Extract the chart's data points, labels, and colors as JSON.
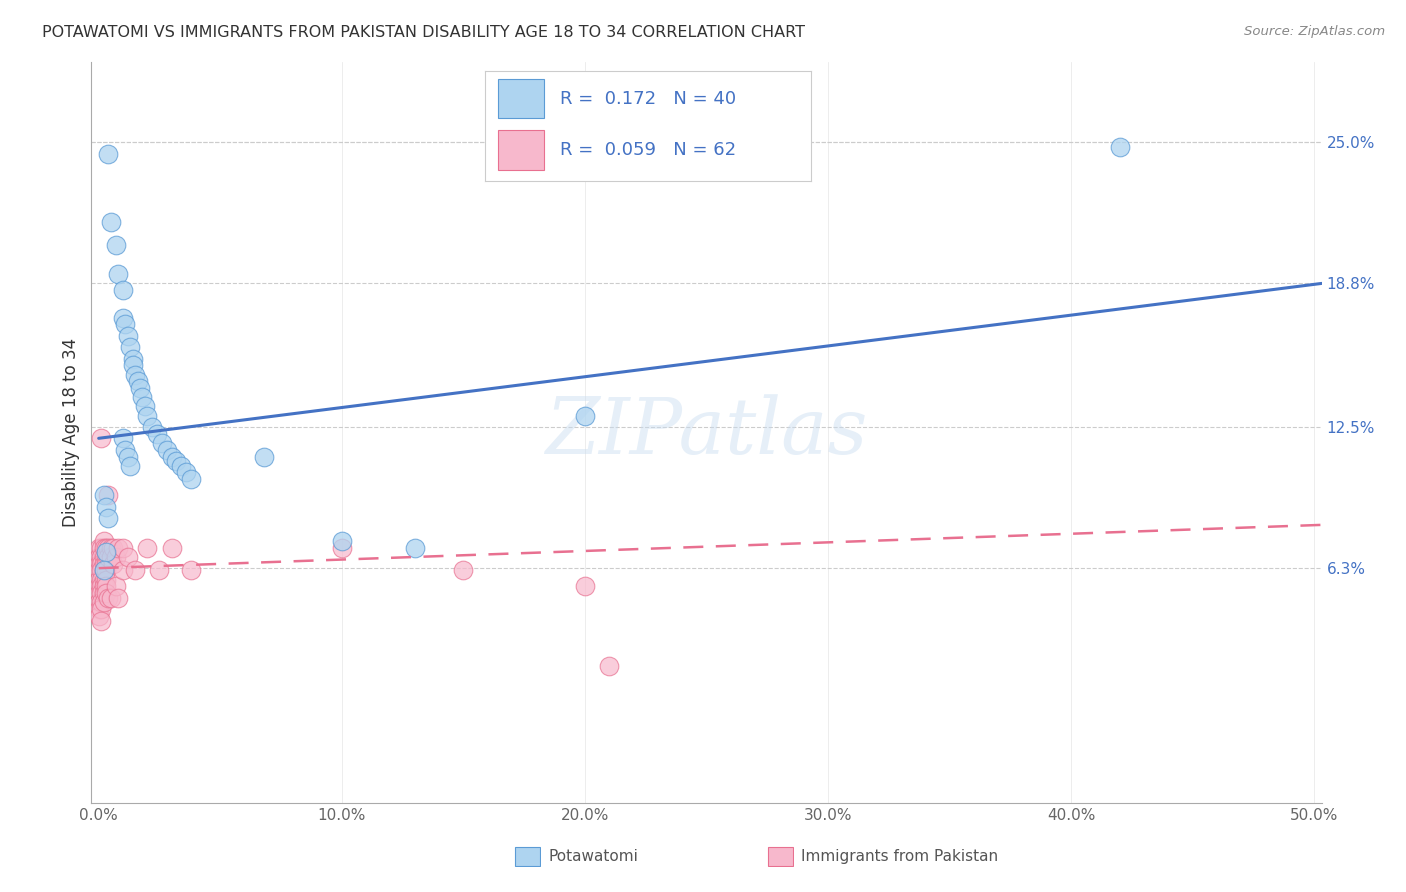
{
  "title": "POTAWATOMI VS IMMIGRANTS FROM PAKISTAN DISABILITY AGE 18 TO 34 CORRELATION CHART",
  "source": "Source: ZipAtlas.com",
  "ylabel": "Disability Age 18 to 34",
  "xlim": [
    -0.003,
    0.503
  ],
  "ylim": [
    -0.04,
    0.285
  ],
  "ytick_values": [
    0.063,
    0.125,
    0.188,
    0.25
  ],
  "ytick_labels": [
    "6.3%",
    "12.5%",
    "18.8%",
    "25.0%"
  ],
  "xtick_values": [
    0.0,
    0.1,
    0.2,
    0.3,
    0.4,
    0.5
  ],
  "xtick_labels": [
    "0.0%",
    "10.0%",
    "20.0%",
    "30.0%",
    "40.0%",
    "50.0%"
  ],
  "blue_R": "0.172",
  "blue_N": "40",
  "pink_R": "0.059",
  "pink_N": "62",
  "blue_face_color": "#AED4F0",
  "blue_edge_color": "#5B9BD5",
  "pink_face_color": "#F7B8CC",
  "pink_edge_color": "#E87090",
  "blue_line_color": "#4472C4",
  "pink_line_color": "#E87090",
  "legend_text_color": "#4472C4",
  "legend_label_blue": "Potawatomi",
  "legend_label_pink": "Immigrants from Pakistan",
  "watermark": "ZIPatlas",
  "blue_x": [
    0.004,
    0.005,
    0.007,
    0.008,
    0.01,
    0.01,
    0.011,
    0.012,
    0.013,
    0.014,
    0.014,
    0.015,
    0.016,
    0.017,
    0.018,
    0.019,
    0.02,
    0.022,
    0.024,
    0.026,
    0.028,
    0.03,
    0.032,
    0.034,
    0.036,
    0.038,
    0.01,
    0.011,
    0.012,
    0.013,
    0.068,
    0.1,
    0.13,
    0.2,
    0.42,
    0.002,
    0.003,
    0.004,
    0.003,
    0.002
  ],
  "blue_y": [
    0.245,
    0.215,
    0.205,
    0.192,
    0.185,
    0.173,
    0.17,
    0.165,
    0.16,
    0.155,
    0.152,
    0.148,
    0.145,
    0.142,
    0.138,
    0.134,
    0.13,
    0.125,
    0.122,
    0.118,
    0.115,
    0.112,
    0.11,
    0.108,
    0.105,
    0.102,
    0.12,
    0.115,
    0.112,
    0.108,
    0.112,
    0.075,
    0.072,
    0.13,
    0.248,
    0.095,
    0.09,
    0.085,
    0.07,
    0.062
  ],
  "pink_x": [
    0.0,
    0.0,
    0.0,
    0.0,
    0.0,
    0.0,
    0.0,
    0.0,
    0.0,
    0.0,
    0.001,
    0.001,
    0.001,
    0.001,
    0.001,
    0.001,
    0.001,
    0.001,
    0.001,
    0.001,
    0.001,
    0.002,
    0.002,
    0.002,
    0.002,
    0.002,
    0.002,
    0.002,
    0.002,
    0.002,
    0.003,
    0.003,
    0.003,
    0.003,
    0.003,
    0.003,
    0.003,
    0.004,
    0.004,
    0.004,
    0.004,
    0.005,
    0.005,
    0.005,
    0.006,
    0.006,
    0.007,
    0.007,
    0.008,
    0.008,
    0.01,
    0.01,
    0.012,
    0.015,
    0.02,
    0.025,
    0.03,
    0.038,
    0.1,
    0.15,
    0.2,
    0.21
  ],
  "pink_y": [
    0.072,
    0.068,
    0.065,
    0.062,
    0.058,
    0.055,
    0.052,
    0.048,
    0.045,
    0.042,
    0.072,
    0.068,
    0.065,
    0.062,
    0.058,
    0.055,
    0.052,
    0.048,
    0.045,
    0.04,
    0.12,
    0.075,
    0.072,
    0.068,
    0.065,
    0.062,
    0.058,
    0.055,
    0.052,
    0.048,
    0.072,
    0.068,
    0.065,
    0.062,
    0.058,
    0.055,
    0.052,
    0.095,
    0.072,
    0.068,
    0.05,
    0.072,
    0.068,
    0.05,
    0.072,
    0.065,
    0.068,
    0.055,
    0.072,
    0.05,
    0.072,
    0.062,
    0.068,
    0.062,
    0.072,
    0.062,
    0.072,
    0.062,
    0.072,
    0.062,
    0.055,
    0.02
  ],
  "blue_line_x": [
    0.0,
    0.503
  ],
  "blue_line_y": [
    0.12,
    0.188
  ],
  "pink_line_x": [
    0.0,
    0.503
  ],
  "pink_line_y": [
    0.063,
    0.082
  ],
  "grid_color": "#CCCCCC",
  "background_color": "#FFFFFF"
}
